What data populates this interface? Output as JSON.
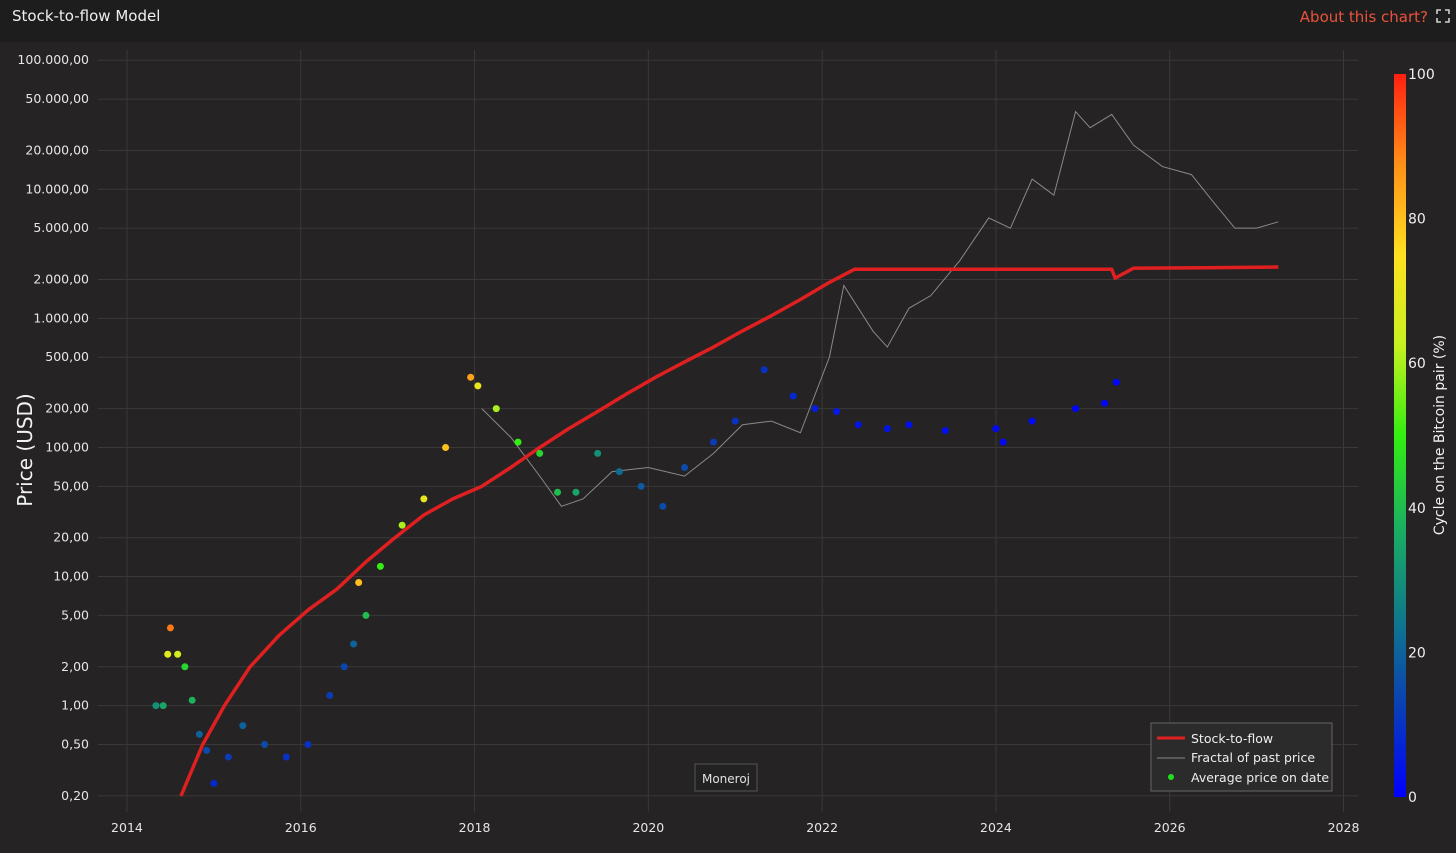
{
  "header": {
    "title": "Stock-to-flow Model",
    "about_link": "About this chart?",
    "expand_icon": "expand-icon"
  },
  "watermark": "Moneroj",
  "colors": {
    "background": "#252323",
    "s2f": "#e02020",
    "fractal": "#8a8a8a",
    "link": "#e9533b"
  },
  "chart_data": {
    "type": "scatter",
    "title": "Stock-to-flow Model",
    "ylabel": "Price (USD)",
    "yscale": "log",
    "ylim": [
      0.15,
      120000
    ],
    "xlim": [
      "2013-09",
      "2028-03"
    ],
    "x_ticks": [
      "2014",
      "2016",
      "2018",
      "2020",
      "2022",
      "2024",
      "2026",
      "2028"
    ],
    "y_ticks": [
      {
        "v": 100000,
        "label": "100.000,00"
      },
      {
        "v": 50000,
        "label": "50.000,00"
      },
      {
        "v": 20000,
        "label": "20.000,00"
      },
      {
        "v": 10000,
        "label": "10.000,00"
      },
      {
        "v": 5000,
        "label": "5.000,00"
      },
      {
        "v": 2000,
        "label": "2.000,00"
      },
      {
        "v": 1000,
        "label": "1.000,00"
      },
      {
        "v": 500,
        "label": "500,00"
      },
      {
        "v": 200,
        "label": "200,00"
      },
      {
        "v": 100,
        "label": "100,00"
      },
      {
        "v": 50,
        "label": "50,00"
      },
      {
        "v": 20,
        "label": "20,00"
      },
      {
        "v": 10,
        "label": "10,00"
      },
      {
        "v": 5,
        "label": "5,00"
      },
      {
        "v": 2,
        "label": "2,00"
      },
      {
        "v": 1,
        "label": "1,00"
      },
      {
        "v": 0.5,
        "label": "0,50"
      },
      {
        "v": 0.2,
        "label": "0,20"
      }
    ],
    "legend": {
      "position": "bottom-right",
      "entries": [
        {
          "label": "Stock-to-flow",
          "kind": "line",
          "color": "#e02020"
        },
        {
          "label": "Fractal of past price",
          "kind": "thin-line",
          "color": "#8a8a8a"
        },
        {
          "label": "Average price on date",
          "kind": "dot",
          "color": "#22dd22"
        }
      ]
    },
    "colorbar": {
      "title": "Cycle on the Bitcoin pair (%)",
      "range": [
        0,
        100
      ],
      "ticks": [
        "0",
        "20",
        "40",
        "60",
        "80",
        "100"
      ],
      "colorscale": [
        "#0000ff",
        "#0a3fb5",
        "#107a8a",
        "#1bb060",
        "#33ee11",
        "#c8f020",
        "#ffe020",
        "#ff9018",
        "#ff2010"
      ]
    },
    "series": [
      {
        "name": "Stock-to-flow",
        "style": "line",
        "points": [
          [
            "2014-08-15",
            0.2
          ],
          [
            "2014-11-15",
            0.5
          ],
          [
            "2015-02-15",
            1.0
          ],
          [
            "2015-06-01",
            2.0
          ],
          [
            "2015-10-01",
            3.5
          ],
          [
            "2016-02-01",
            5.5
          ],
          [
            "2016-06-01",
            8.0
          ],
          [
            "2016-10-01",
            13.0
          ],
          [
            "2017-02-01",
            20.0
          ],
          [
            "2017-06-01",
            30.0
          ],
          [
            "2017-10-01",
            40.0
          ],
          [
            "2018-02-01",
            50.0
          ],
          [
            "2018-06-01",
            70.0
          ],
          [
            "2018-10-01",
            100.0
          ],
          [
            "2019-02-01",
            140.0
          ],
          [
            "2019-06-01",
            190.0
          ],
          [
            "2019-10-01",
            260.0
          ],
          [
            "2020-02-01",
            350.0
          ],
          [
            "2020-06-01",
            460.0
          ],
          [
            "2020-10-01",
            600.0
          ],
          [
            "2021-02-01",
            800.0
          ],
          [
            "2021-06-01",
            1050.0
          ],
          [
            "2021-10-01",
            1400.0
          ],
          [
            "2022-02-01",
            1900.0
          ],
          [
            "2022-05-15",
            2400.0
          ],
          [
            "2023-01-01",
            2400.0
          ],
          [
            "2024-01-01",
            2400.0
          ],
          [
            "2025-05-01",
            2400.0
          ],
          [
            "2025-05-15",
            2050.0
          ],
          [
            "2025-08-01",
            2450.0
          ],
          [
            "2026-06-01",
            2470.0
          ],
          [
            "2027-04-01",
            2500.0
          ]
        ]
      },
      {
        "name": "Fractal of past price",
        "style": "thin-line",
        "points": [
          [
            "2018-02-01",
            200
          ],
          [
            "2018-06-01",
            120
          ],
          [
            "2018-10-01",
            60
          ],
          [
            "2019-01-01",
            35
          ],
          [
            "2019-04-01",
            40
          ],
          [
            "2019-08-01",
            65
          ],
          [
            "2020-01-01",
            70
          ],
          [
            "2020-06-01",
            60
          ],
          [
            "2020-10-01",
            90
          ],
          [
            "2021-02-01",
            150
          ],
          [
            "2021-06-01",
            160
          ],
          [
            "2021-10-01",
            130
          ],
          [
            "2022-02-01",
            500
          ],
          [
            "2022-04-01",
            1800
          ],
          [
            "2022-08-01",
            800
          ],
          [
            "2022-10-01",
            600
          ],
          [
            "2023-01-01",
            1200
          ],
          [
            "2023-04-01",
            1500
          ],
          [
            "2023-08-01",
            2800
          ],
          [
            "2023-12-01",
            6000
          ],
          [
            "2024-03-01",
            5000
          ],
          [
            "2024-06-01",
            12000
          ],
          [
            "2024-09-01",
            9000
          ],
          [
            "2024-12-01",
            40000
          ],
          [
            "2025-02-01",
            30000
          ],
          [
            "2025-05-01",
            38000
          ],
          [
            "2025-08-01",
            22000
          ],
          [
            "2025-12-01",
            15000
          ],
          [
            "2026-04-01",
            13000
          ],
          [
            "2026-07-01",
            8000
          ],
          [
            "2026-10-01",
            5000
          ],
          [
            "2027-01-01",
            5000
          ],
          [
            "2027-04-01",
            5600
          ]
        ]
      },
      {
        "name": "Average price on date",
        "style": "dots",
        "points": [
          [
            "2014-05-01",
            1.0,
            30
          ],
          [
            "2014-06-01",
            1.0,
            35
          ],
          [
            "2014-06-20",
            2.5,
            68
          ],
          [
            "2014-07-01",
            4.0,
            90
          ],
          [
            "2014-08-01",
            2.5,
            65
          ],
          [
            "2014-09-01",
            2.0,
            45
          ],
          [
            "2014-10-01",
            1.1,
            38
          ],
          [
            "2014-11-01",
            0.6,
            20
          ],
          [
            "2014-12-01",
            0.45,
            15
          ],
          [
            "2015-01-01",
            0.25,
            8
          ],
          [
            "2015-03-01",
            0.4,
            12
          ],
          [
            "2015-05-01",
            0.7,
            20
          ],
          [
            "2015-08-01",
            0.5,
            15
          ],
          [
            "2015-11-01",
            0.4,
            10
          ],
          [
            "2016-02-01",
            0.5,
            10
          ],
          [
            "2016-05-01",
            1.2,
            12
          ],
          [
            "2016-07-01",
            2.0,
            14
          ],
          [
            "2016-08-10",
            3.0,
            20
          ],
          [
            "2016-09-01",
            9.0,
            80
          ],
          [
            "2016-10-01",
            5.0,
            40
          ],
          [
            "2016-12-01",
            12.0,
            50
          ],
          [
            "2017-03-01",
            25.0,
            60
          ],
          [
            "2017-06-01",
            40.0,
            70
          ],
          [
            "2017-09-01",
            100.0,
            80
          ],
          [
            "2017-12-15",
            350.0,
            85
          ],
          [
            "2018-01-15",
            300.0,
            70
          ],
          [
            "2018-04-01",
            200.0,
            60
          ],
          [
            "2018-07-01",
            110.0,
            50
          ],
          [
            "2018-10-01",
            90.0,
            45
          ],
          [
            "2018-12-15",
            45.0,
            40
          ],
          [
            "2019-03-01",
            45.0,
            35
          ],
          [
            "2019-06-01",
            90.0,
            30
          ],
          [
            "2019-09-01",
            65.0,
            22
          ],
          [
            "2019-12-01",
            50.0,
            18
          ],
          [
            "2020-03-01",
            35.0,
            15
          ],
          [
            "2020-06-01",
            70.0,
            15
          ],
          [
            "2020-10-01",
            110.0,
            12
          ],
          [
            "2021-01-01",
            160.0,
            10
          ],
          [
            "2021-05-01",
            400.0,
            10
          ],
          [
            "2021-09-01",
            250.0,
            8
          ],
          [
            "2021-12-01",
            200.0,
            6
          ],
          [
            "2022-03-01",
            190.0,
            5
          ],
          [
            "2022-06-01",
            150.0,
            4
          ],
          [
            "2022-10-01",
            140.0,
            4
          ],
          [
            "2023-01-01",
            150.0,
            3
          ],
          [
            "2023-06-01",
            135.0,
            3
          ],
          [
            "2024-01-01",
            140.0,
            2
          ],
          [
            "2024-02-01",
            110.0,
            2
          ],
          [
            "2024-06-01",
            160.0,
            2
          ],
          [
            "2024-12-01",
            200.0,
            1
          ],
          [
            "2025-04-01",
            220.0,
            1
          ],
          [
            "2025-05-20",
            320.0,
            1
          ]
        ]
      }
    ]
  }
}
